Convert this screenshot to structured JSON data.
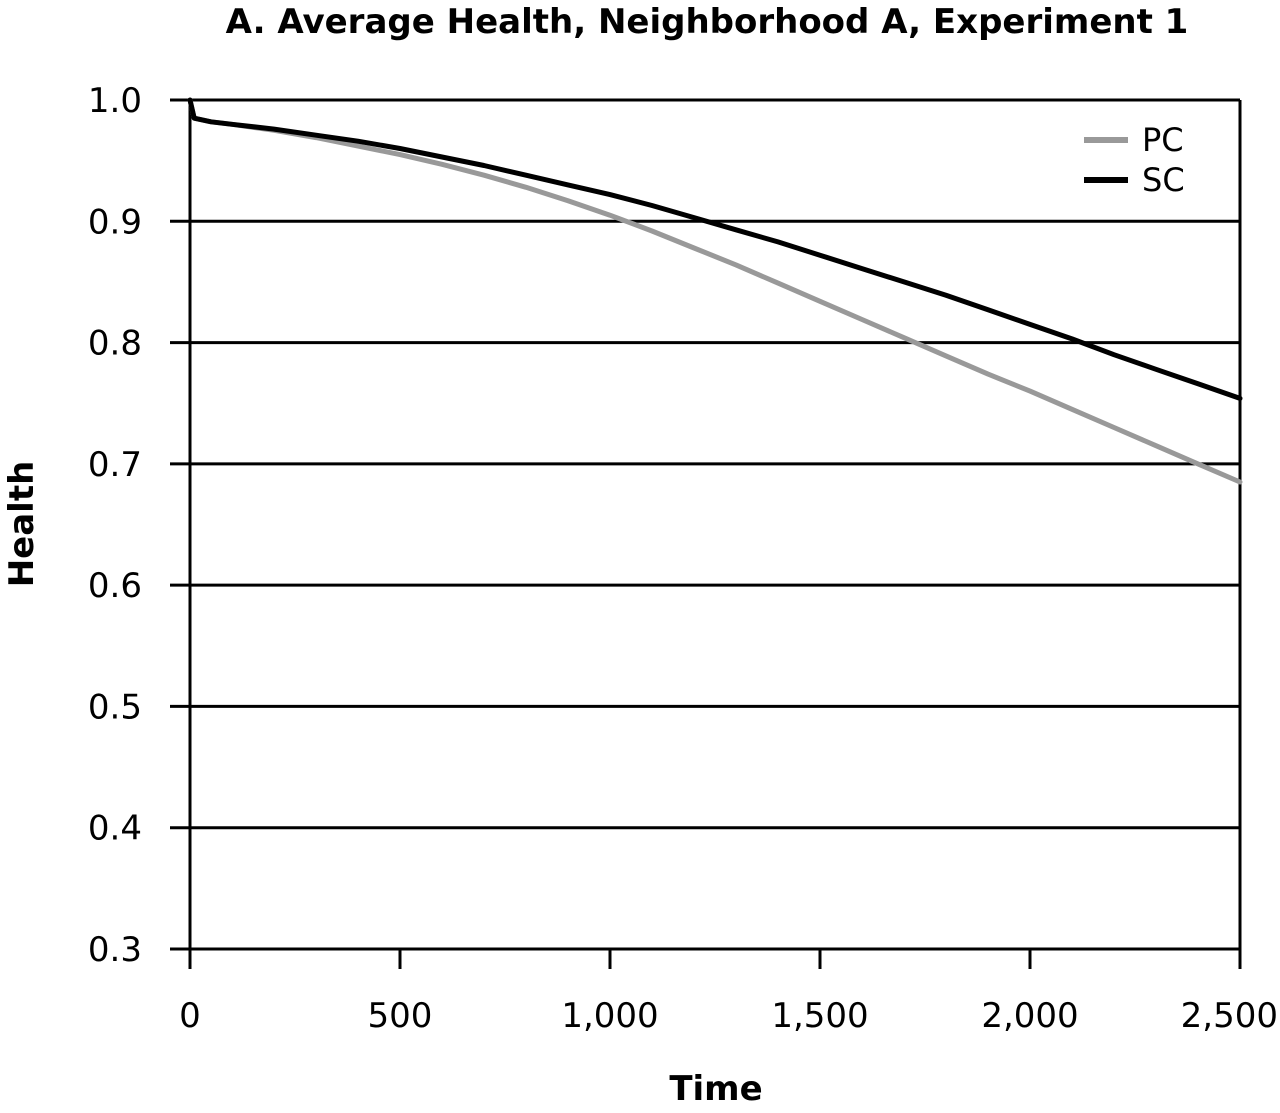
{
  "chart_data": {
    "type": "line",
    "title": "A. Average Health, Neighborhood A, Experiment 1",
    "xlabel": "Time",
    "ylabel": "Health",
    "xlim": [
      0,
      2500
    ],
    "ylim": [
      0.3,
      1.0
    ],
    "x_ticks": [
      0,
      500,
      1000,
      1500,
      2000,
      2500
    ],
    "x_tick_labels": [
      "0",
      "500",
      "1,000",
      "1,500",
      "2,000",
      "2,500"
    ],
    "y_ticks": [
      0.3,
      0.4,
      0.5,
      0.6,
      0.7,
      0.8,
      0.9,
      1.0
    ],
    "y_tick_labels": [
      "0.3",
      "0.4",
      "0.5",
      "0.6",
      "0.7",
      "0.8",
      "0.9",
      "1.0"
    ],
    "grid": "horizontal",
    "legend_position": "top-right",
    "series": [
      {
        "name": "PC",
        "color": "#999999",
        "x": [
          0,
          10,
          50,
          100,
          200,
          300,
          400,
          500,
          600,
          700,
          800,
          900,
          1000,
          1100,
          1200,
          1300,
          1400,
          1500,
          1600,
          1700,
          1800,
          1900,
          2000,
          2100,
          2200,
          2300,
          2400,
          2500
        ],
        "y": [
          1.0,
          0.985,
          0.982,
          0.98,
          0.975,
          0.969,
          0.962,
          0.955,
          0.947,
          0.938,
          0.928,
          0.917,
          0.905,
          0.892,
          0.878,
          0.864,
          0.849,
          0.834,
          0.819,
          0.804,
          0.789,
          0.774,
          0.76,
          0.745,
          0.73,
          0.715,
          0.7,
          0.685
        ]
      },
      {
        "name": "SC",
        "color": "#000000",
        "x": [
          0,
          10,
          50,
          100,
          200,
          300,
          400,
          500,
          600,
          700,
          800,
          900,
          1000,
          1100,
          1200,
          1300,
          1400,
          1500,
          1600,
          1700,
          1800,
          1900,
          2000,
          2100,
          2200,
          2300,
          2400,
          2500
        ],
        "y": [
          1.0,
          0.985,
          0.982,
          0.98,
          0.976,
          0.971,
          0.966,
          0.96,
          0.953,
          0.946,
          0.938,
          0.93,
          0.922,
          0.913,
          0.903,
          0.893,
          0.883,
          0.872,
          0.861,
          0.85,
          0.839,
          0.827,
          0.815,
          0.803,
          0.79,
          0.778,
          0.766,
          0.754
        ]
      }
    ]
  }
}
